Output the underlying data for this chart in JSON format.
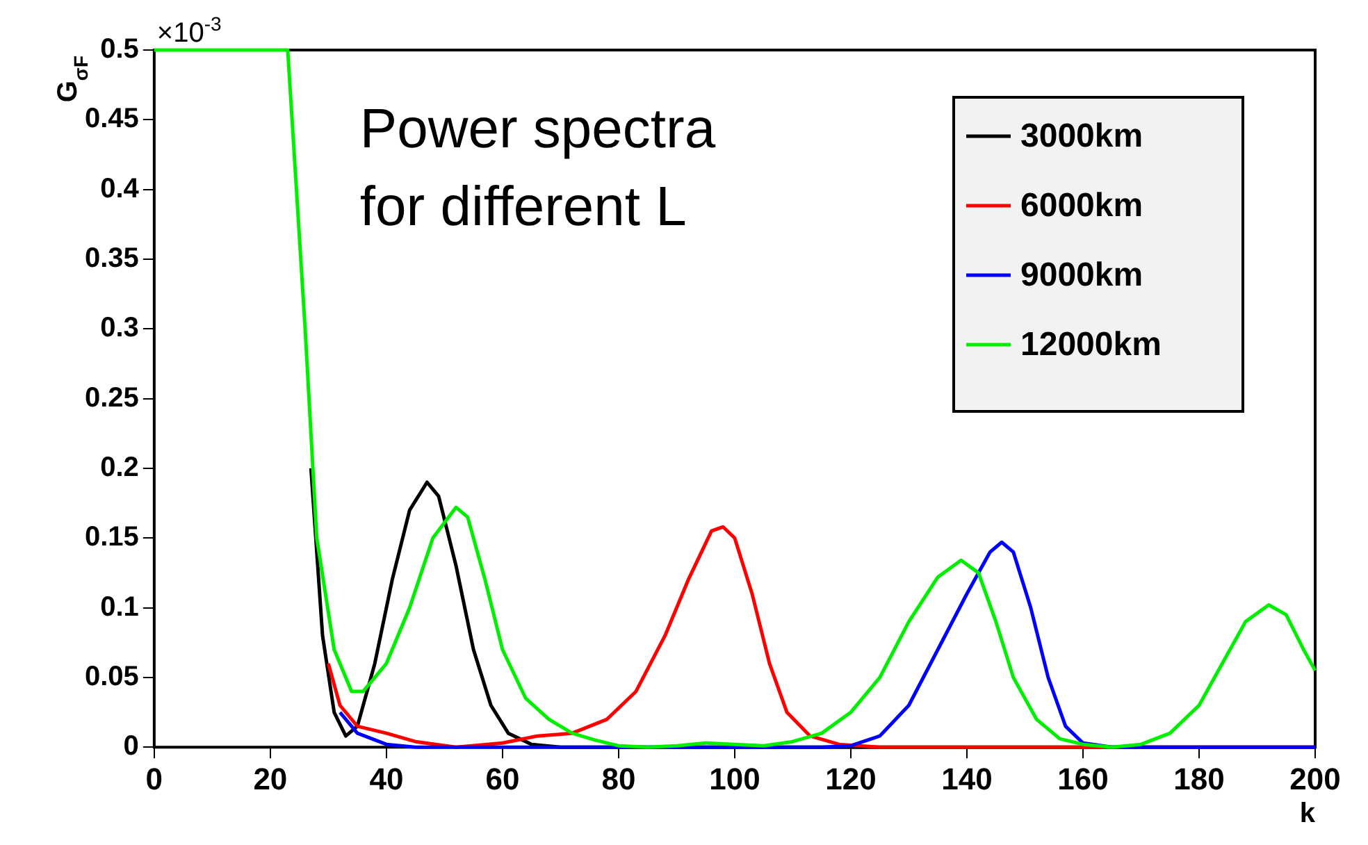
{
  "chart_data": {
    "type": "line",
    "xlabel": "k",
    "ylabel": "G$_{σF}$",
    "annotations": [
      "×10$^{-3}$",
      "Power spectra",
      "for different L"
    ],
    "xlim": [
      0,
      200
    ],
    "xticks": [
      0,
      20,
      40,
      60,
      80,
      100,
      120,
      140,
      160,
      180,
      200
    ],
    "ylim": [
      0,
      0.5
    ],
    "yticks": [
      0,
      0.05,
      0.1,
      0.15,
      0.2,
      0.25,
      0.3,
      0.35,
      0.4,
      0.45,
      0.5
    ],
    "grid": false,
    "legend": "top right",
    "marker": "none",
    "line_style": "solid",
    "series": [
      {
        "name": "3000km",
        "color": "#000000",
        "x": [
          27,
          29,
          31,
          33,
          35,
          38,
          41,
          44,
          47,
          49,
          52,
          55,
          58,
          61,
          65,
          70,
          200
        ],
        "values": [
          0.2,
          0.08,
          0.025,
          0.008,
          0.015,
          0.06,
          0.12,
          0.17,
          0.19,
          0.18,
          0.13,
          0.07,
          0.03,
          0.01,
          0.002,
          0,
          0
        ]
      },
      {
        "name": "6000km",
        "color": "#ff0000",
        "x": [
          30,
          32,
          35,
          40,
          45,
          52,
          60,
          66,
          72,
          78,
          83,
          88,
          92,
          96,
          98,
          100,
          103,
          106,
          109,
          113,
          118,
          125,
          200
        ],
        "values": [
          0.06,
          0.03,
          0.015,
          0.01,
          0.004,
          0,
          0.003,
          0.008,
          0.01,
          0.02,
          0.04,
          0.08,
          0.12,
          0.155,
          0.158,
          0.15,
          0.11,
          0.06,
          0.025,
          0.008,
          0.002,
          0,
          0
        ]
      },
      {
        "name": "9000km",
        "color": "#0000ff",
        "x": [
          32,
          35,
          40,
          45,
          115,
          120,
          125,
          130,
          135,
          140,
          144,
          146,
          148,
          151,
          154,
          157,
          160,
          165,
          200
        ],
        "values": [
          0.025,
          0.01,
          0.002,
          0,
          0,
          0.001,
          0.008,
          0.03,
          0.07,
          0.11,
          0.14,
          0.147,
          0.14,
          0.1,
          0.05,
          0.015,
          0.003,
          0,
          0
        ]
      },
      {
        "name": "12000km",
        "color": "#00ee00",
        "x": [
          0,
          23,
          26,
          28,
          31,
          34,
          36,
          40,
          44,
          48,
          52,
          54,
          57,
          60,
          64,
          68,
          72,
          76,
          80,
          85,
          90,
          95,
          100,
          105,
          110,
          115,
          120,
          125,
          130,
          135,
          139,
          142,
          145,
          148,
          152,
          156,
          160,
          165,
          170,
          175,
          180,
          184,
          188,
          192,
          195,
          198,
          200
        ],
        "values": [
          0.5,
          0.5,
          0.3,
          0.15,
          0.07,
          0.04,
          0.04,
          0.06,
          0.1,
          0.15,
          0.172,
          0.165,
          0.12,
          0.07,
          0.035,
          0.02,
          0.01,
          0.005,
          0.001,
          0,
          0.001,
          0.003,
          0.002,
          0.001,
          0.004,
          0.01,
          0.025,
          0.05,
          0.09,
          0.122,
          0.134,
          0.125,
          0.09,
          0.05,
          0.02,
          0.006,
          0.002,
          0,
          0.002,
          0.01,
          0.03,
          0.06,
          0.09,
          0.102,
          0.095,
          0.07,
          0.055
        ]
      }
    ]
  }
}
